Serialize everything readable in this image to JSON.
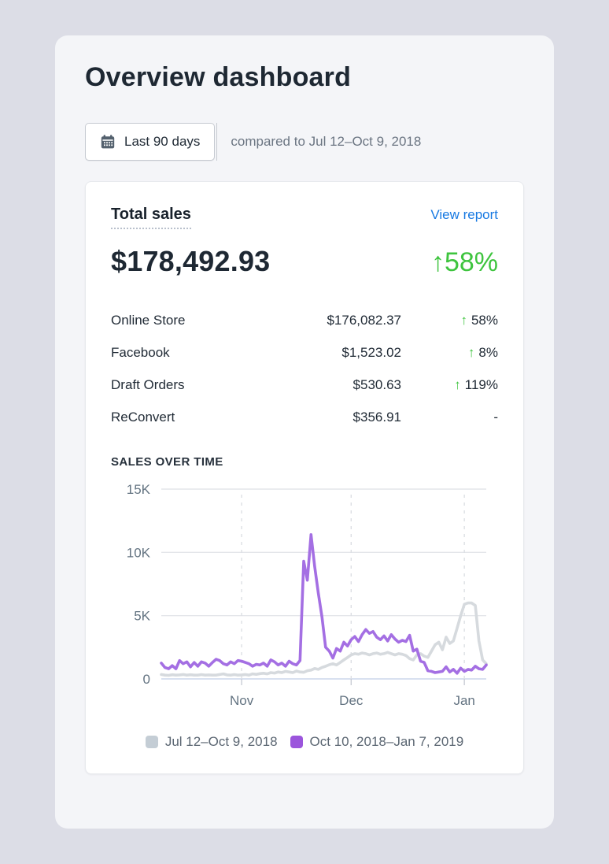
{
  "page": {
    "title": "Overview dashboard",
    "date_range_button": "Last 90 days",
    "compared_to": "compared to Jul 12–Oct 9, 2018"
  },
  "card": {
    "metric_title": "Total sales",
    "view_report": "View report",
    "total_value": "$178,492.93",
    "total_delta_arrow": "↑",
    "total_delta_value": "58%",
    "rows": [
      {
        "label": "Online Store",
        "value": "$176,082.37",
        "delta": "58%",
        "direction": "up"
      },
      {
        "label": "Facebook",
        "value": "$1,523.02",
        "delta": "8%",
        "direction": "up"
      },
      {
        "label": "Draft Orders",
        "value": "$530.63",
        "delta": "119%",
        "direction": "up"
      },
      {
        "label": "ReConvert",
        "value": "$356.91",
        "delta": "-",
        "direction": "none"
      }
    ],
    "chart_heading": "SALES OVER TIME"
  },
  "colors": {
    "accent_blue": "#1779e2",
    "positive_green": "#3ec43e",
    "current_period_purple": "#9b55dc",
    "previous_period_gray": "#c4cdd5",
    "grid_line": "#e4e6ea",
    "grid_dashed": "#dcdfe4",
    "baseline": "#ccd6ec",
    "axis_text": "#637381"
  },
  "chart_data": {
    "type": "line",
    "title": "Sales over time",
    "unit": "thousands of dollars",
    "x_axis": {
      "days": 90,
      "ticks": [
        {
          "label": "Nov",
          "day": 22
        },
        {
          "label": "Dec",
          "day": 52
        },
        {
          "label": "Jan",
          "day": 83
        }
      ]
    },
    "y_axis": {
      "max": 15,
      "ticks": [
        {
          "label": "0",
          "value": 0
        },
        {
          "label": "5K",
          "value": 5
        },
        {
          "label": "10K",
          "value": 10
        },
        {
          "label": "15K",
          "value": 15
        }
      ]
    },
    "legend_position": "bottom",
    "series": [
      {
        "name": "Jul 12–Oct 9, 2018",
        "swatch_color": "#c4cdd5",
        "line_color": "#d6dade",
        "values": [
          0.35,
          0.3,
          0.28,
          0.33,
          0.3,
          0.32,
          0.35,
          0.3,
          0.33,
          0.3,
          0.3,
          0.34,
          0.3,
          0.32,
          0.3,
          0.3,
          0.35,
          0.4,
          0.32,
          0.3,
          0.34,
          0.3,
          0.32,
          0.35,
          0.3,
          0.4,
          0.36,
          0.42,
          0.45,
          0.4,
          0.5,
          0.46,
          0.55,
          0.5,
          0.6,
          0.55,
          0.5,
          0.62,
          0.55,
          0.52,
          0.65,
          0.7,
          0.82,
          0.75,
          0.9,
          1.0,
          1.12,
          1.2,
          1.1,
          1.3,
          1.5,
          1.7,
          1.9,
          2.0,
          1.95,
          2.05,
          2.0,
          1.9,
          2.0,
          2.05,
          1.95,
          2.0,
          2.1,
          2.0,
          1.9,
          2.0,
          1.95,
          1.85,
          1.6,
          1.5,
          1.9,
          2.0,
          1.8,
          1.7,
          2.2,
          2.7,
          2.9,
          2.3,
          3.3,
          2.8,
          3.0,
          4.0,
          5.0,
          5.9,
          6.0,
          6.0,
          5.8,
          3.0,
          1.5,
          1.2
        ]
      },
      {
        "name": "Oct 10, 2018–Jan 7, 2019",
        "swatch_color": "#9b55dc",
        "line_color": "#a46fe3",
        "values": [
          1.25,
          0.9,
          0.8,
          1.05,
          0.8,
          1.45,
          1.2,
          1.35,
          0.95,
          1.3,
          1.0,
          1.35,
          1.25,
          1.0,
          1.3,
          1.55,
          1.45,
          1.2,
          1.1,
          1.35,
          1.2,
          1.45,
          1.4,
          1.3,
          1.2,
          1.0,
          1.15,
          1.1,
          1.25,
          1.0,
          1.5,
          1.35,
          1.1,
          1.25,
          1.0,
          1.4,
          1.2,
          1.1,
          1.45,
          9.3,
          7.8,
          11.4,
          8.9,
          6.8,
          4.9,
          2.5,
          2.2,
          1.65,
          2.4,
          2.2,
          2.9,
          2.6,
          3.1,
          3.35,
          2.95,
          3.5,
          3.9,
          3.6,
          3.75,
          3.3,
          3.1,
          3.4,
          3.0,
          3.5,
          3.15,
          2.9,
          3.05,
          2.95,
          3.45,
          2.2,
          2.35,
          1.4,
          1.3,
          0.65,
          0.6,
          0.5,
          0.55,
          0.6,
          0.95,
          0.55,
          0.75,
          0.45,
          0.85,
          0.6,
          0.75,
          0.7,
          1.0,
          0.8,
          0.75,
          1.1
        ]
      }
    ]
  }
}
